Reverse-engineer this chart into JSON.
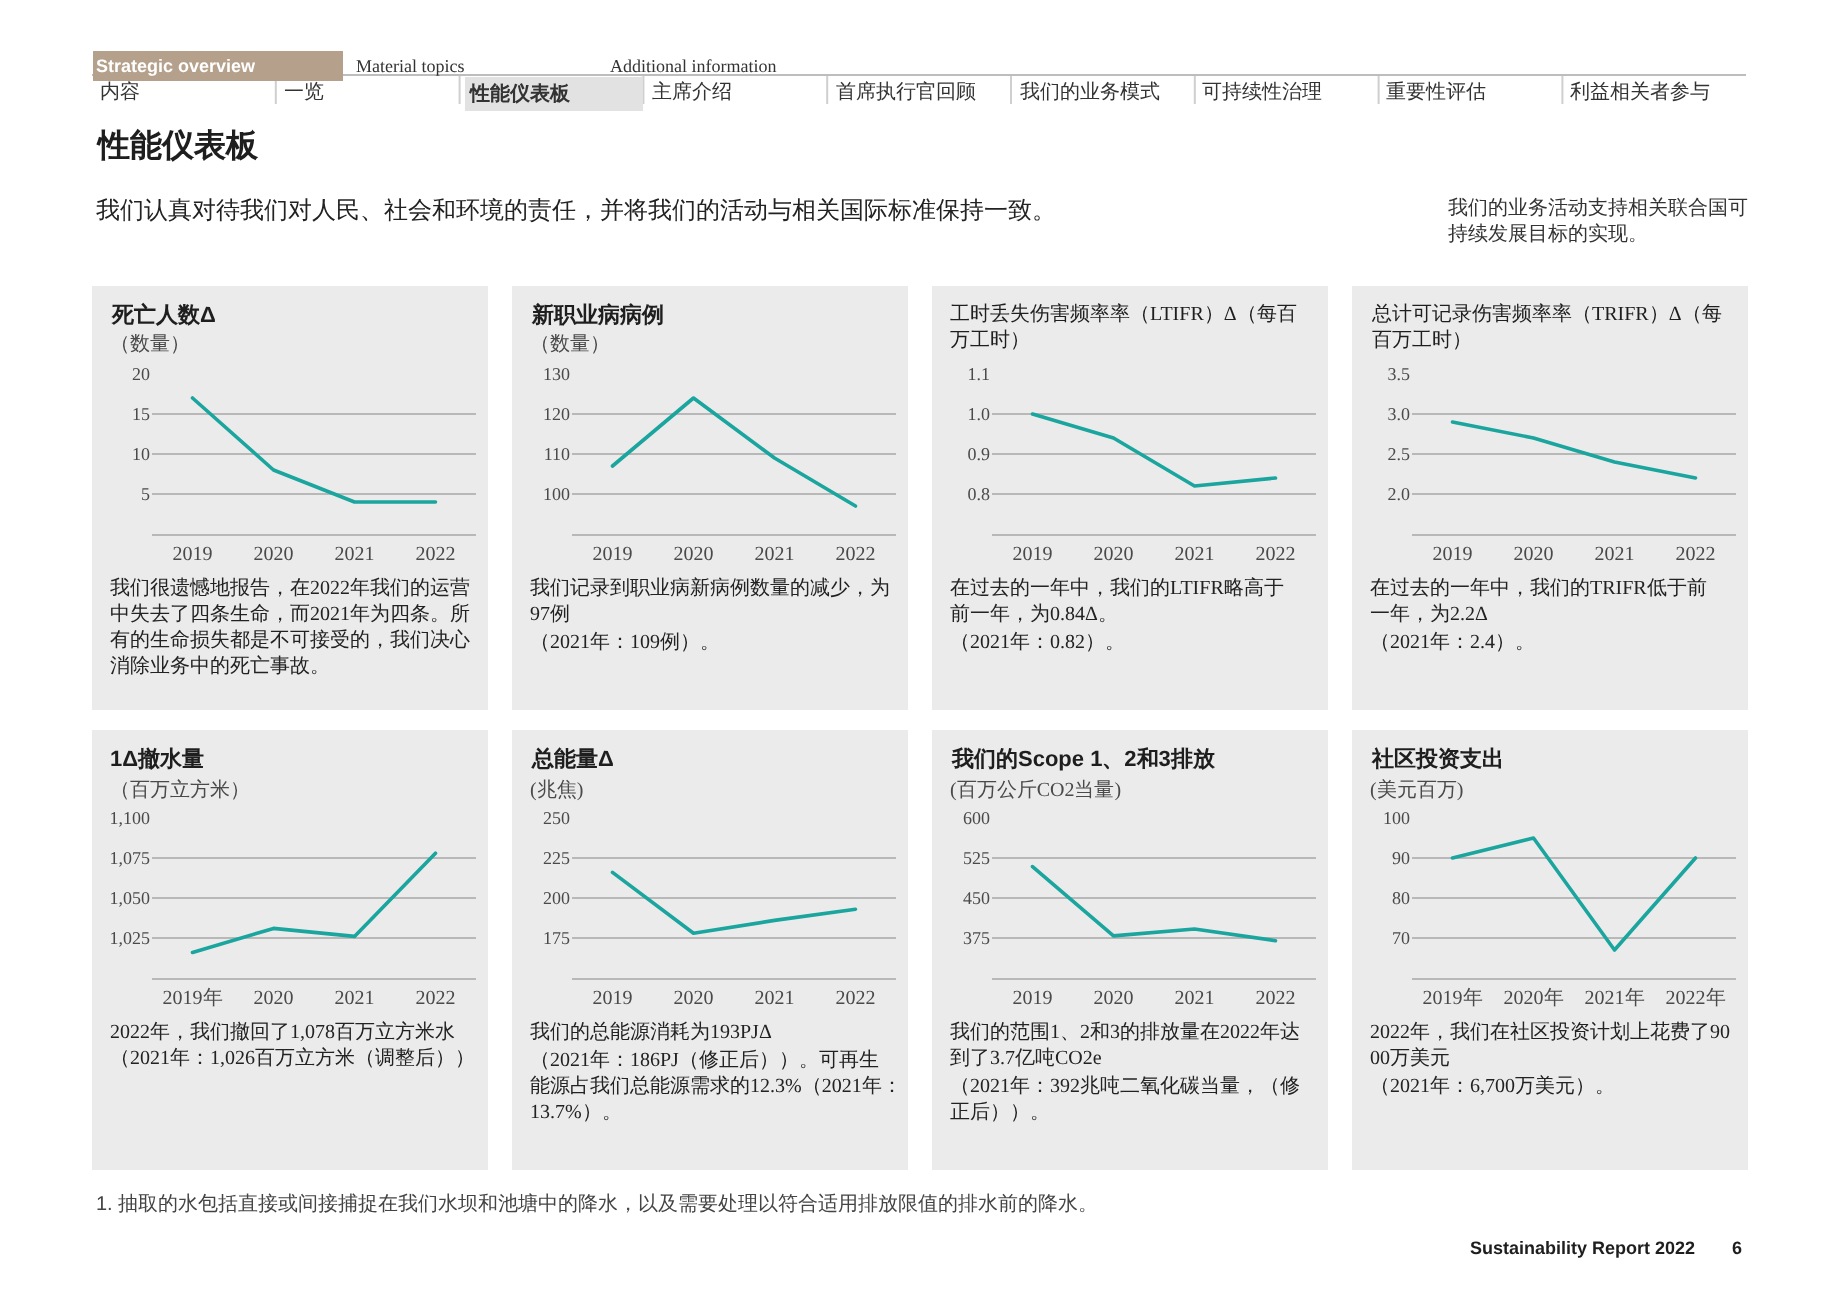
{
  "chart_data": [
    {
      "type": "other",
      "title": "性能仪表板",
      "subtitle": "我们认真对待我们对人民、社会和环境的责任，并将我们的活动与相关国际标准保持一致。",
      "annotations": [
        "Strategic overview",
        "Material topics",
        "Additional information",
        "内容",
        "一览",
        "性能仪表板",
        "主席介绍",
        "首席执行官回顾",
        "我们的业务模式",
        "可持续性治理",
        "重要性评估",
        "利益相关者参与",
        "我们的业务活动支持相关联合国可持续发展目标的实现。",
        "1. 抽取的水包括直接或间接捕捉在我们水坝和池塘中的降水，以及需要处理以符合适用排放限值的排水前的降水。",
        "Sustainability Report 2022",
        "6"
      ]
    },
    {
      "type": "line",
      "title": "死亡人数Δ",
      "subtitle": "（数量）",
      "categories": [
        "2019",
        "2020",
        "2021",
        "2022"
      ],
      "values": [
        17,
        8,
        4,
        4
      ],
      "color": "#1aa59e",
      "ylim": [
        0,
        20
      ],
      "yticks": [
        5,
        10,
        15,
        20
      ],
      "grid": "y",
      "annotations": [
        "我们很遗憾地报告，在2022年我们的运营中失去了四条生命，而2021年为四条。所有的生命损失都是不可接受的，我们决心消除业务中的死亡事故。"
      ]
    },
    {
      "type": "line",
      "title": "新职业病病例",
      "subtitle": "（数量）",
      "categories": [
        "2019",
        "2020",
        "2021",
        "2022"
      ],
      "values": [
        107,
        124,
        109,
        97
      ],
      "color": "#1aa59e",
      "ylim": [
        90,
        130
      ],
      "yticks": [
        100,
        110,
        120,
        130
      ],
      "grid": "y",
      "annotations": [
        "我们记录到职业病新病例数量的减少，为97例",
        "（2021年：109例）。"
      ]
    },
    {
      "type": "line",
      "title": "工时丢失伤害频率率（LTIFR）Δ（每百万工时）",
      "categories": [
        "2019",
        "2020",
        "2021",
        "2022"
      ],
      "values": [
        1.0,
        0.94,
        0.82,
        0.84
      ],
      "color": "#1aa59e",
      "ylim": [
        0.7,
        1.1
      ],
      "yticks": [
        0.8,
        0.9,
        {
          "value": 1,
          "label": "1.0"
        },
        1.1
      ],
      "grid": "y",
      "annotations": [
        "在过去的一年中，我们的LTIFR略高于前一年，为0.84Δ。",
        "（2021年：0.82）。"
      ]
    },
    {
      "type": "line",
      "title": "总计可记录伤害频率率（TRIFR）Δ（每百万工时）",
      "categories": [
        "2019",
        "2020",
        "2021",
        "2022"
      ],
      "values": [
        2.9,
        2.7,
        2.4,
        2.2
      ],
      "color": "#1aa59e",
      "ylim": [
        1.5,
        3.5
      ],
      "yticks": [
        {
          "value": 2,
          "label": "2.0"
        },
        2.5,
        {
          "value": 3,
          "label": "3.0"
        },
        3.5
      ],
      "grid": "y",
      "annotations": [
        "在过去的一年中，我们的TRIFR低于前一年，为2.2Δ",
        "（2021年：2.4）。"
      ]
    },
    {
      "type": "line",
      "title": "1Δ撤水量",
      "subtitle": "（百万立方米）",
      "categories": [
        "2019年",
        "2020",
        "2021",
        "2022"
      ],
      "values": [
        1016,
        1031,
        1026,
        1078
      ],
      "color": "#1aa59e",
      "ylim": [
        1000,
        1100
      ],
      "yticks": [
        {
          "value": 1025,
          "label": "1,025"
        },
        {
          "value": 1050,
          "label": "1,050"
        },
        {
          "value": 1075,
          "label": "1,075"
        },
        {
          "value": 1100,
          "label": "1,100"
        }
      ],
      "grid": "y",
      "annotations": [
        "2022年，我们撤回了1,078百万立方米水（2021年：1,026百万立方米（调整后））"
      ]
    },
    {
      "type": "line",
      "title": "总能量Δ",
      "subtitle": "(兆焦)",
      "categories": [
        "2019",
        "2020",
        "2021",
        "2022"
      ],
      "values": [
        216,
        178,
        186,
        193
      ],
      "color": "#1aa59e",
      "ylim": [
        150,
        250
      ],
      "yticks": [
        175,
        200,
        225,
        250
      ],
      "grid": "y",
      "annotations": [
        "我们的总能源消耗为193PJΔ",
        "（2021年：186PJ（修正后））。可再生能源占我们总能源需求的12.3%（2021年：13.7%）。"
      ]
    },
    {
      "type": "line",
      "title": "我们的Scope 1、2和3排放",
      "subtitle": "(百万公斤CO2当量)",
      "categories": [
        "2019",
        "2020",
        "2021",
        "2022"
      ],
      "values": [
        509,
        379,
        392,
        370
      ],
      "color": "#1aa59e",
      "ylim": [
        300,
        600
      ],
      "yticks": [
        375,
        450,
        525,
        600
      ],
      "grid": "y",
      "annotations": [
        "我们的范围1、2和3的排放量在2022年达到了3.7亿吨CO2e",
        "（2021年：392兆吨二氧化碳当量，（修正后））。"
      ]
    },
    {
      "type": "line",
      "title": "社区投资支出",
      "subtitle": "(美元百万)",
      "categories": [
        "2019年",
        "2020年",
        "2021年",
        "2022年"
      ],
      "values": [
        90,
        95,
        67,
        90
      ],
      "color": "#1aa59e",
      "ylim": [
        60,
        100
      ],
      "yticks": [
        70,
        80,
        90,
        100
      ],
      "grid": "y",
      "annotations": [
        "2022年，我们在社区投资计划上花费了9000万美元",
        "（2021年：6,700万美元）。"
      ]
    }
  ]
}
